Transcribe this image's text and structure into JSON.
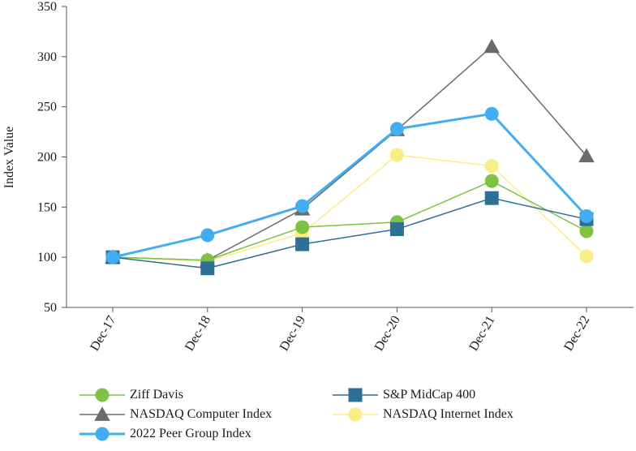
{
  "chart_data": {
    "type": "line",
    "title": "",
    "xlabel": "",
    "ylabel": "Index Value",
    "categories": [
      "Dec-17",
      "Dec-18",
      "Dec-19",
      "Dec-20",
      "Dec-21",
      "Dec-22"
    ],
    "ylim": [
      50,
      350
    ],
    "yticks": [
      50,
      100,
      150,
      200,
      250,
      300,
      350
    ],
    "grid": false,
    "legend_position": "bottom",
    "series": [
      {
        "name": "Ziff Davis",
        "values": [
          100,
          97,
          130,
          135,
          176,
          126
        ],
        "color": "#7dc242",
        "marker": "circle"
      },
      {
        "name": "S&P MidCap 400",
        "values": [
          100,
          89,
          113,
          128,
          159,
          138
        ],
        "color": "#2e6f95",
        "marker": "square"
      },
      {
        "name": "NASDAQ Computer Index",
        "values": [
          100,
          97,
          148,
          227,
          310,
          201
        ],
        "color": "#6b6b6b",
        "marker": "triangle"
      },
      {
        "name": "NASDAQ Internet Index",
        "values": [
          100,
          96,
          124,
          202,
          191,
          101
        ],
        "color": "#fbed86",
        "marker": "circle"
      },
      {
        "name": "2022 Peer Group Index",
        "values": [
          100,
          122,
          151,
          228,
          243,
          141
        ],
        "color": "#42adf0",
        "marker": "circle"
      }
    ]
  }
}
